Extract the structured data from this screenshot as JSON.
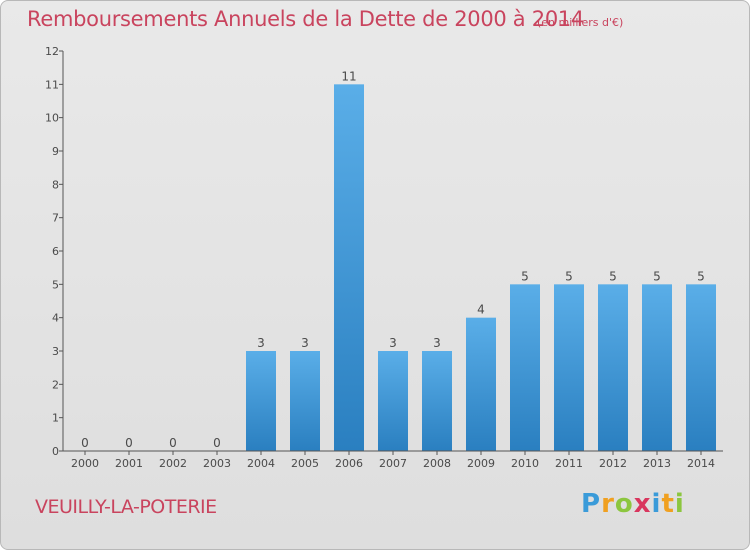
{
  "title": "Remboursements Annuels de la Dette de 2000 à 2014",
  "subtitle": "(en milliers d'€)",
  "commune": "VEUILLY-LA-POTERIE",
  "brand": {
    "letters": [
      {
        "ch": "P",
        "color": "#3a9bd9"
      },
      {
        "ch": "r",
        "color": "#f0a020"
      },
      {
        "ch": "o",
        "color": "#8cc63f"
      },
      {
        "ch": "x",
        "color": "#d9365e"
      },
      {
        "ch": "i",
        "color": "#3a9bd9"
      },
      {
        "ch": "t",
        "color": "#f0a020"
      },
      {
        "ch": "i",
        "color": "#8cc63f"
      }
    ]
  },
  "chart_data": {
    "type": "bar",
    "categories": [
      "2000",
      "2001",
      "2002",
      "2003",
      "2004",
      "2005",
      "2006",
      "2007",
      "2008",
      "2009",
      "2010",
      "2011",
      "2012",
      "2013",
      "2014"
    ],
    "values": [
      0,
      0,
      0,
      0,
      3,
      3,
      11,
      3,
      3,
      4,
      5,
      5,
      5,
      5,
      5
    ],
    "ylim": [
      0,
      12
    ],
    "yticks": [
      0,
      1,
      2,
      3,
      4,
      5,
      6,
      7,
      8,
      9,
      10,
      11,
      12
    ],
    "grid": false,
    "bar_color_top": "#5aaee8",
    "bar_color_bottom": "#2a7fc0"
  }
}
